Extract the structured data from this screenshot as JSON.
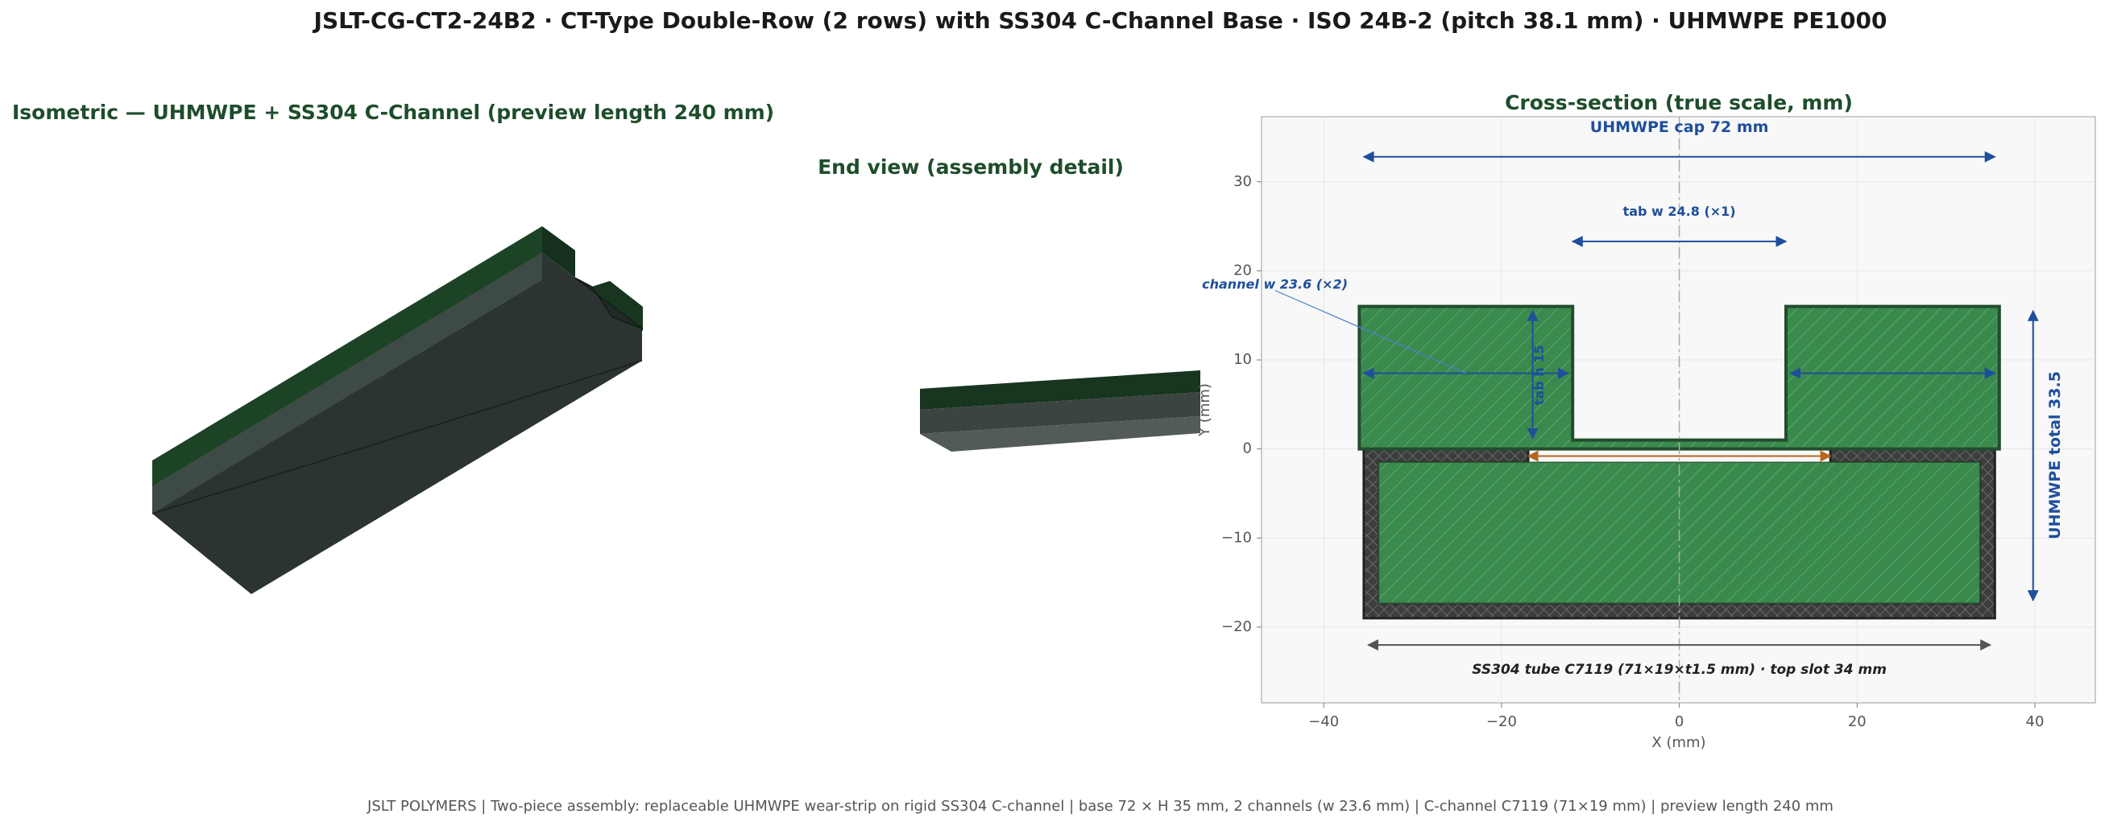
{
  "header": {
    "title": "JSLT-CG-CT2-24B2   ·   CT-Type Double-Row (2 rows) with SS304 C-Channel Base   ·   ISO 24B-2 (pitch 38.1 mm)   ·   UHMWPE PE1000"
  },
  "isometric": {
    "title": "Isometric — UHMWPE + SS304 C-Channel  (preview length 240 mm)"
  },
  "end_view": {
    "title": "End view (assembly detail)"
  },
  "cross_section": {
    "title": "Cross-section (true scale, mm)",
    "xlabel": "X  (mm)",
    "ylabel": "Y  (mm)",
    "xlim": [
      -47,
      46.8
    ],
    "ylim": [
      -28.5,
      37.3
    ],
    "xticks": [
      {
        "value": -40,
        "label": "−40"
      },
      {
        "value": -20,
        "label": "−20"
      },
      0,
      20,
      40
    ],
    "yticks": [
      {
        "value": -20,
        "label": "−20"
      },
      {
        "value": -10,
        "label": "−10"
      },
      0,
      10,
      20,
      30
    ],
    "annotations": {
      "cap": "UHMWPE cap 72 mm",
      "tab_w": "tab w 24.8 (×1)",
      "channel_w": "channel w 23.6 (×2)",
      "tab_h": "tab h 15",
      "total": "UHMWPE total 33.5",
      "tube": "SS304 tube C7119  (71×19×t1.5 mm)  ·  top slot 34 mm"
    }
  },
  "footer": "JSLT POLYMERS  |  Two-piece assembly: replaceable UHMWPE wear-strip on rigid SS304 C-channel  |  base 72 × H 35 mm, 2 channels (w 23.6 mm)  |  C-channel C7119 (71×19 mm)  |  preview length 240 mm"
}
